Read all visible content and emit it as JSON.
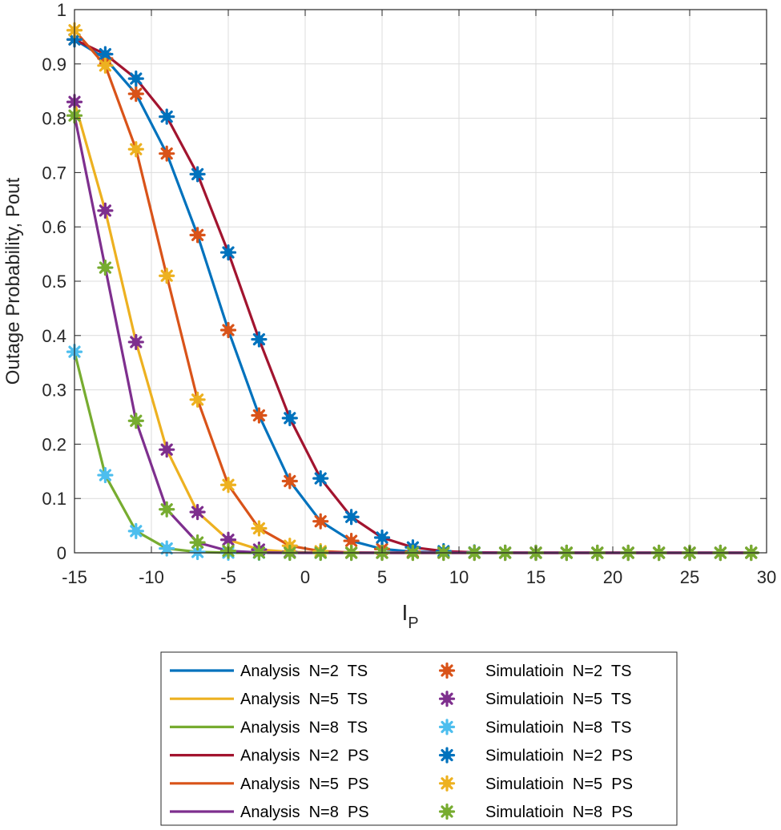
{
  "chart_data": {
    "type": "line",
    "title": "",
    "xlabel": "I",
    "xlabel_sub": "P",
    "ylabel": "Outage Probability, Pout",
    "xlim": [
      -15,
      30
    ],
    "ylim": [
      0,
      1
    ],
    "xticks": [
      -15,
      -10,
      -5,
      0,
      5,
      10,
      15,
      20,
      25,
      30
    ],
    "xtick_labels": [
      "-15",
      "-10",
      "-5",
      "0",
      "5",
      "10",
      "15",
      "20",
      "25",
      "30"
    ],
    "yticks": [
      0,
      0.1,
      0.2,
      0.3,
      0.4,
      0.5,
      0.6,
      0.7,
      0.8,
      0.9,
      1
    ],
    "ytick_labels": [
      "0",
      "0.1",
      "0.2",
      "0.3",
      "0.4",
      "0.5",
      "0.6",
      "0.7",
      "0.8",
      "0.9",
      "1"
    ],
    "grid": true,
    "legend_position": "bottom-outside",
    "x": [
      -15,
      -13,
      -11,
      -9,
      -7,
      -5,
      -3,
      -1,
      1,
      3,
      5,
      7,
      9,
      11,
      13,
      15,
      17,
      19,
      21,
      23,
      25,
      27,
      29
    ],
    "series": [
      {
        "name": "Analysis  N=2  TS",
        "kind": "line",
        "color": "#0072BD",
        "values": [
          0.945,
          0.91,
          0.845,
          0.735,
          0.585,
          0.41,
          0.253,
          0.132,
          0.058,
          0.022,
          0.007,
          0.002,
          0.0005,
          0,
          0,
          0,
          0,
          0,
          0,
          0,
          0,
          0,
          0
        ]
      },
      {
        "name": "Analysis  N=5  TS",
        "kind": "line",
        "color": "#EDB120",
        "values": [
          0.83,
          0.63,
          0.388,
          0.19,
          0.075,
          0.024,
          0.006,
          0.0015,
          0.0003,
          0,
          0,
          0,
          0,
          0,
          0,
          0,
          0,
          0,
          0,
          0,
          0,
          0,
          0
        ]
      },
      {
        "name": "Analysis  N=8  TS",
        "kind": "line",
        "color": "#77AC30",
        "values": [
          0.37,
          0.143,
          0.04,
          0.008,
          0.0015,
          0.0002,
          0,
          0,
          0,
          0,
          0,
          0,
          0,
          0,
          0,
          0,
          0,
          0,
          0,
          0,
          0,
          0,
          0
        ]
      },
      {
        "name": "Analysis  N=2  PS",
        "kind": "line",
        "color": "#A2142F",
        "values": [
          0.945,
          0.918,
          0.873,
          0.803,
          0.697,
          0.553,
          0.393,
          0.248,
          0.137,
          0.066,
          0.028,
          0.01,
          0.003,
          0.0008,
          0.0002,
          0,
          0,
          0,
          0,
          0,
          0,
          0,
          0
        ]
      },
      {
        "name": "Analysis  N=5  PS",
        "kind": "line",
        "color": "#D95319",
        "values": [
          0.962,
          0.897,
          0.743,
          0.51,
          0.282,
          0.125,
          0.045,
          0.013,
          0.003,
          0.0006,
          0.0001,
          0,
          0,
          0,
          0,
          0,
          0,
          0,
          0,
          0,
          0,
          0,
          0
        ]
      },
      {
        "name": "Analysis  N=8  PS",
        "kind": "line",
        "color": "#7E2F8E",
        "values": [
          0.805,
          0.525,
          0.243,
          0.08,
          0.019,
          0.0035,
          0.0005,
          0,
          0,
          0,
          0,
          0,
          0,
          0,
          0,
          0,
          0,
          0,
          0,
          0,
          0,
          0,
          0
        ]
      },
      {
        "name": "Simulatioin  N=2  TS",
        "kind": "marker",
        "color": "#D95319",
        "values": [
          0.945,
          0.91,
          0.845,
          0.735,
          0.585,
          0.41,
          0.253,
          0.132,
          0.058,
          0.022,
          0.007,
          0.002,
          0.0005,
          0,
          0,
          0,
          0,
          0,
          0,
          0,
          0,
          0,
          0
        ]
      },
      {
        "name": "Simulatioin  N=5  TS",
        "kind": "marker",
        "color": "#7E2F8E",
        "values": [
          0.83,
          0.63,
          0.388,
          0.19,
          0.075,
          0.024,
          0.006,
          0.0015,
          0.0003,
          0,
          0,
          0,
          0,
          0,
          0,
          0,
          0,
          0,
          0,
          0,
          0,
          0,
          0
        ]
      },
      {
        "name": "Simulatioin  N=8  TS",
        "kind": "marker",
        "color": "#4DBEEE",
        "values": [
          0.37,
          0.143,
          0.04,
          0.008,
          0.0015,
          0.0002,
          0,
          0,
          0,
          0,
          0,
          0,
          0,
          0,
          0,
          0,
          0,
          0,
          0,
          0,
          0,
          0,
          0
        ]
      },
      {
        "name": "Simulatioin  N=2  PS",
        "kind": "marker",
        "color": "#0072BD",
        "values": [
          0.945,
          0.918,
          0.873,
          0.803,
          0.697,
          0.553,
          0.393,
          0.248,
          0.137,
          0.066,
          0.028,
          0.01,
          0.003,
          0.0008,
          0.0002,
          0,
          0,
          0,
          0,
          0,
          0,
          0,
          0
        ]
      },
      {
        "name": "Simulatioin  N=5  PS",
        "kind": "marker",
        "color": "#EDB120",
        "values": [
          0.962,
          0.897,
          0.743,
          0.51,
          0.282,
          0.125,
          0.045,
          0.013,
          0.003,
          0.0006,
          0.0001,
          0,
          0,
          0,
          0,
          0,
          0,
          0,
          0,
          0,
          0,
          0,
          0
        ]
      },
      {
        "name": "Simulatioin  N=8  PS",
        "kind": "marker",
        "color": "#77AC30",
        "values": [
          0.805,
          0.525,
          0.243,
          0.08,
          0.019,
          0.0035,
          0.0005,
          0,
          0,
          0,
          0,
          0,
          0,
          0,
          0,
          0,
          0,
          0,
          0,
          0,
          0,
          0,
          0
        ]
      }
    ]
  }
}
